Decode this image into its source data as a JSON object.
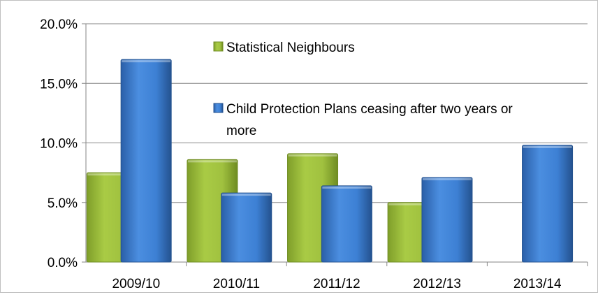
{
  "chart_data": {
    "type": "bar",
    "categories": [
      "2009/10",
      "2010/11",
      "2011/12",
      "2012/13",
      "2013/14"
    ],
    "series": [
      {
        "name": "Statistical Neighbours",
        "color": "#9bbb3c",
        "values": [
          7.5,
          8.6,
          9.1,
          5.0,
          null
        ]
      },
      {
        "name": "Child Protection Plans ceasing after two years or more",
        "color": "#3f7fd1",
        "values": [
          17.0,
          5.8,
          6.4,
          7.1,
          9.8
        ]
      }
    ],
    "ylim": [
      0,
      20
    ],
    "yticks": [
      "0.0%",
      "5.0%",
      "10.0%",
      "15.0%",
      "20.0%"
    ],
    "grid": true,
    "legend_position": "top-right"
  }
}
